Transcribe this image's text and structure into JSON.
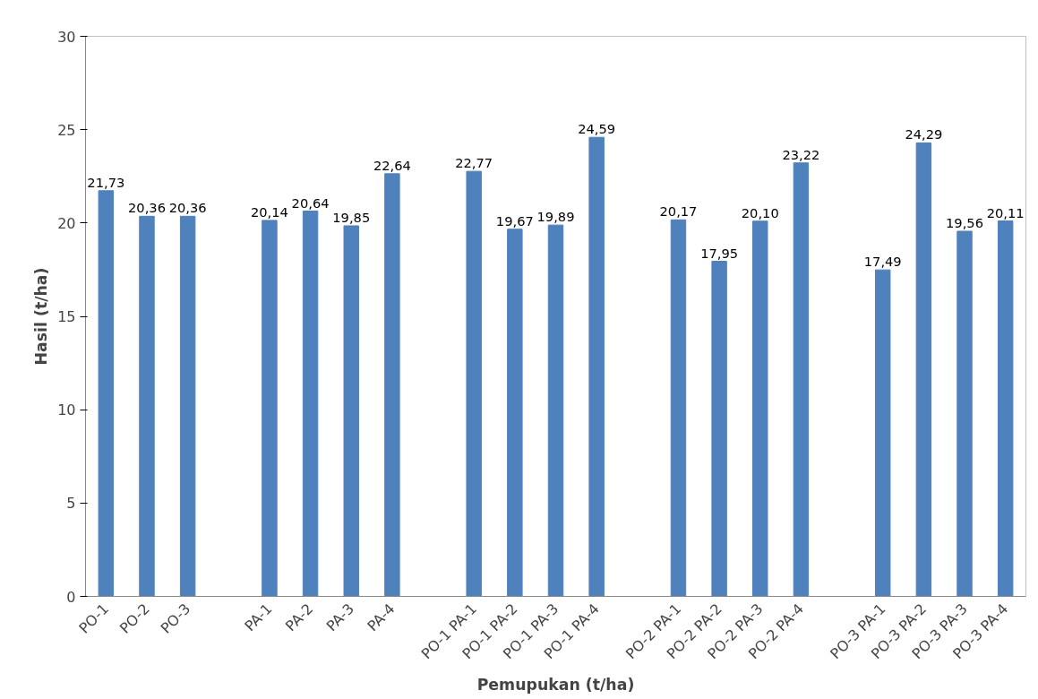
{
  "chart_data": {
    "type": "bar",
    "xlabel": "Pemupukan (t/ha)",
    "ylabel": "Hasil (t/ha)",
    "categories": [
      "PO-1",
      "PO-2",
      "PO-3",
      null,
      "PA-1",
      "PA-2",
      "PA-3",
      "PA-4",
      null,
      "PO-1 PA-1",
      "PO-1 PA-2",
      "PO-1 PA-3",
      "PO-1 PA-4",
      null,
      "PO-2 PA-1",
      "PO-2 PA-2",
      "PO-2 PA-3",
      "PO-2 PA-4",
      null,
      "PO-3 PA-1",
      "PO-3 PA-2",
      "PO-3 PA-3",
      "PO-3 PA-4"
    ],
    "values": [
      21.73,
      20.36,
      20.36,
      null,
      20.14,
      20.64,
      19.85,
      22.64,
      null,
      22.77,
      19.67,
      19.89,
      24.59,
      null,
      20.17,
      17.95,
      20.1,
      23.22,
      null,
      17.49,
      24.29,
      19.56,
      20.11
    ],
    "value_labels": [
      "21,73",
      "20,36",
      "20,36",
      null,
      "20,14",
      "20,64",
      "19,85",
      "22,64",
      null,
      "22,77",
      "19,67",
      "19,89",
      "24,59",
      null,
      "20,17",
      "17,95",
      "20,10",
      "23,22",
      null,
      "17,49",
      "24,29",
      "19,56",
      "20,11"
    ],
    "color": "#4f81bd",
    "ylim": [
      0,
      30
    ],
    "yticks": [
      0,
      5,
      10,
      15,
      20,
      25,
      30
    ],
    "grid": false
  }
}
